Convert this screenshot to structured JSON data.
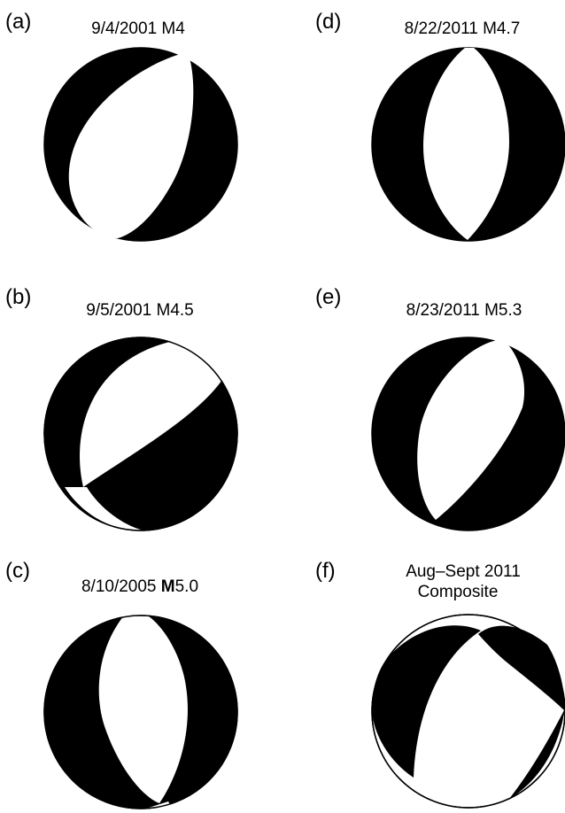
{
  "colors": {
    "compression": "#000000",
    "dilatation": "#ffffff"
  },
  "panels": [
    {
      "letter": "(a)",
      "title": {
        "pre": "9/4/2001 M4",
        "bold": "",
        "post": ""
      }
    },
    {
      "letter": "(b)",
      "title": {
        "pre": "9/5/2001 M4.5",
        "bold": "",
        "post": ""
      }
    },
    {
      "letter": "(c)",
      "title": {
        "pre": "8/10/2005 ",
        "bold": "M",
        "post": "5.0"
      }
    },
    {
      "letter": "(d)",
      "title": {
        "pre": "8/22/2011 M4.7",
        "bold": "",
        "post": ""
      }
    },
    {
      "letter": "(e)",
      "title": {
        "pre": "8/23/2011 M5.3",
        "bold": "",
        "post": ""
      }
    },
    {
      "letter": "(f)",
      "title": {
        "pre": "Aug–Sept 2011",
        "bold": "",
        "post": ""
      },
      "title2": "Composite"
    }
  ]
}
